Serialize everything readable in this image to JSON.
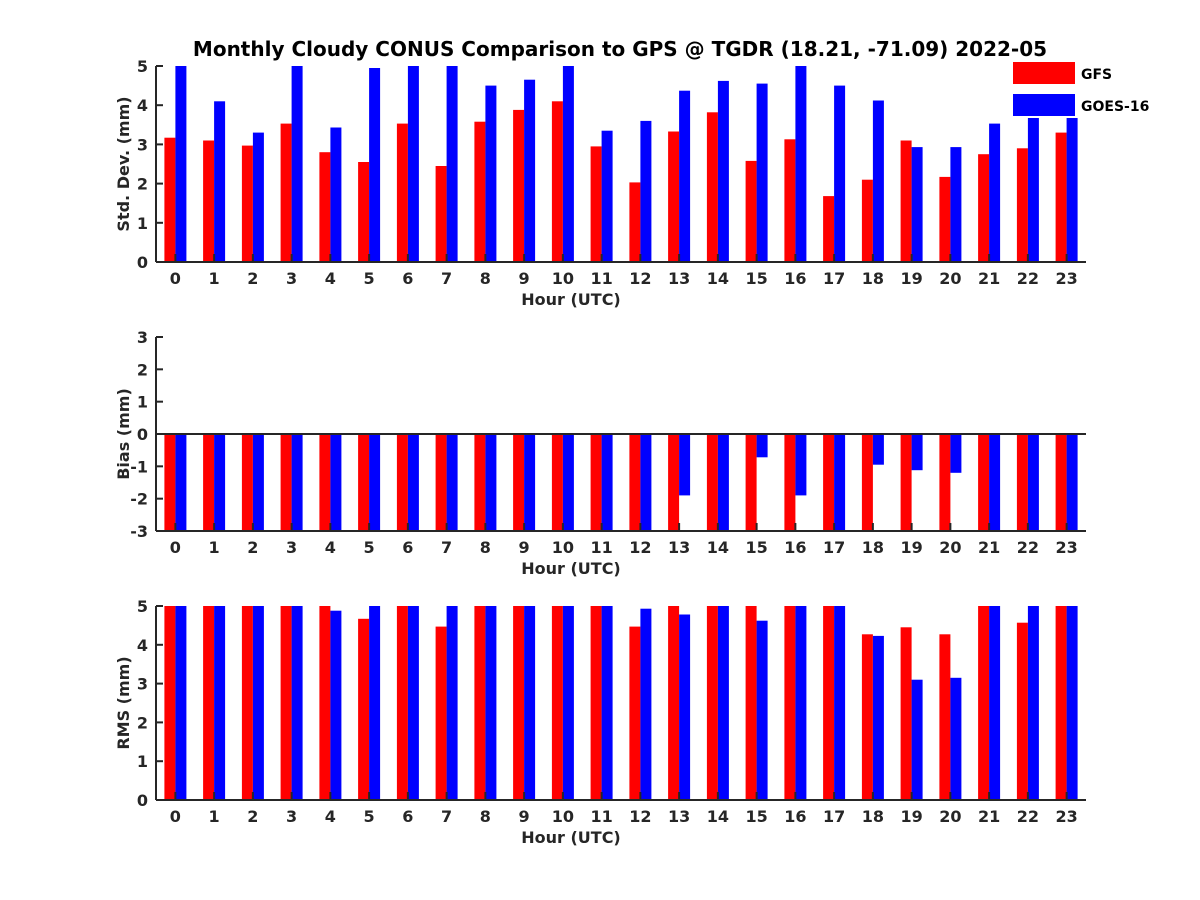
{
  "figure": {
    "title": "Monthly Cloudy CONUS Comparison to GPS @ TGDR (18.21, -71.09) 2022-05"
  },
  "legend": {
    "placement": "top-right",
    "entries": [
      {
        "label": "GFS",
        "color": "#ff0000"
      },
      {
        "label": "GOES-16",
        "color": "#0000ff"
      }
    ]
  },
  "chart_data": [
    {
      "type": "bar",
      "xlabel": "Hour (UTC)",
      "ylabel": "Std. Dev. (mm)",
      "ylim": [
        0,
        5
      ],
      "yticks": [
        0,
        1,
        2,
        3,
        4,
        5
      ],
      "categories": [
        "0",
        "1",
        "2",
        "3",
        "4",
        "5",
        "6",
        "7",
        "8",
        "9",
        "10",
        "11",
        "12",
        "13",
        "14",
        "15",
        "16",
        "17",
        "18",
        "19",
        "20",
        "21",
        "22",
        "23"
      ],
      "series": [
        {
          "name": "GFS",
          "color": "#ff0000",
          "values": [
            3.17,
            3.1,
            2.97,
            3.53,
            2.8,
            2.55,
            3.53,
            2.45,
            3.58,
            3.88,
            4.1,
            2.95,
            2.03,
            3.33,
            3.82,
            2.58,
            3.13,
            1.68,
            2.1,
            3.1,
            2.17,
            2.75,
            2.9,
            3.3
          ]
        },
        {
          "name": "GOES-16",
          "color": "#0000ff",
          "values": [
            5.0,
            4.1,
            3.3,
            5.0,
            3.43,
            4.95,
            5.0,
            5.0,
            4.5,
            4.65,
            5.0,
            3.35,
            3.6,
            4.37,
            4.62,
            4.55,
            5.0,
            4.5,
            4.12,
            2.93,
            2.93,
            3.53,
            4.1,
            3.8
          ]
        }
      ]
    },
    {
      "type": "bar",
      "xlabel": "Hour (UTC)",
      "ylabel": "Bias (mm)",
      "ylim": [
        -3,
        3
      ],
      "yticks": [
        -3,
        -2,
        -1,
        0,
        1,
        2,
        3
      ],
      "categories": [
        "0",
        "1",
        "2",
        "3",
        "4",
        "5",
        "6",
        "7",
        "8",
        "9",
        "10",
        "11",
        "12",
        "13",
        "14",
        "15",
        "16",
        "17",
        "18",
        "19",
        "20",
        "21",
        "22",
        "23"
      ],
      "series": [
        {
          "name": "GFS",
          "color": "#ff0000",
          "values": [
            -3,
            -3,
            -3,
            -3,
            -3,
            -3,
            -3,
            -3,
            -3,
            -3,
            -3,
            -3,
            -3,
            -3,
            -3,
            -3,
            -3,
            -3,
            -3,
            -3,
            -3,
            -3,
            -3,
            -3
          ]
        },
        {
          "name": "GOES-16",
          "color": "#0000ff",
          "values": [
            -3,
            -3,
            -3,
            -3,
            -3,
            -3,
            -3,
            -3,
            -3,
            -3,
            -3,
            -3,
            -3,
            -1.9,
            -3,
            -0.72,
            -1.9,
            -3,
            -0.95,
            -1.12,
            -1.2,
            -3,
            -3,
            -3
          ]
        }
      ]
    },
    {
      "type": "bar",
      "xlabel": "Hour (UTC)",
      "ylabel": "RMS (mm)",
      "ylim": [
        0,
        5
      ],
      "yticks": [
        0,
        1,
        2,
        3,
        4,
        5
      ],
      "categories": [
        "0",
        "1",
        "2",
        "3",
        "4",
        "5",
        "6",
        "7",
        "8",
        "9",
        "10",
        "11",
        "12",
        "13",
        "14",
        "15",
        "16",
        "17",
        "18",
        "19",
        "20",
        "21",
        "22",
        "23"
      ],
      "series": [
        {
          "name": "GFS",
          "color": "#ff0000",
          "values": [
            5.0,
            5.0,
            5.0,
            5.0,
            5.0,
            4.67,
            5.0,
            4.47,
            5.0,
            5.0,
            5.0,
            5.0,
            4.47,
            5.0,
            5.0,
            5.0,
            5.0,
            5.0,
            4.27,
            4.45,
            4.27,
            5.0,
            4.57,
            5.0
          ]
        },
        {
          "name": "GOES-16",
          "color": "#0000ff",
          "values": [
            5.0,
            5.0,
            5.0,
            5.0,
            4.88,
            5.0,
            5.0,
            5.0,
            5.0,
            5.0,
            5.0,
            5.0,
            4.93,
            4.78,
            5.0,
            4.62,
            5.0,
            5.0,
            4.23,
            3.1,
            3.15,
            5.0,
            5.0,
            5.0
          ]
        }
      ]
    }
  ]
}
